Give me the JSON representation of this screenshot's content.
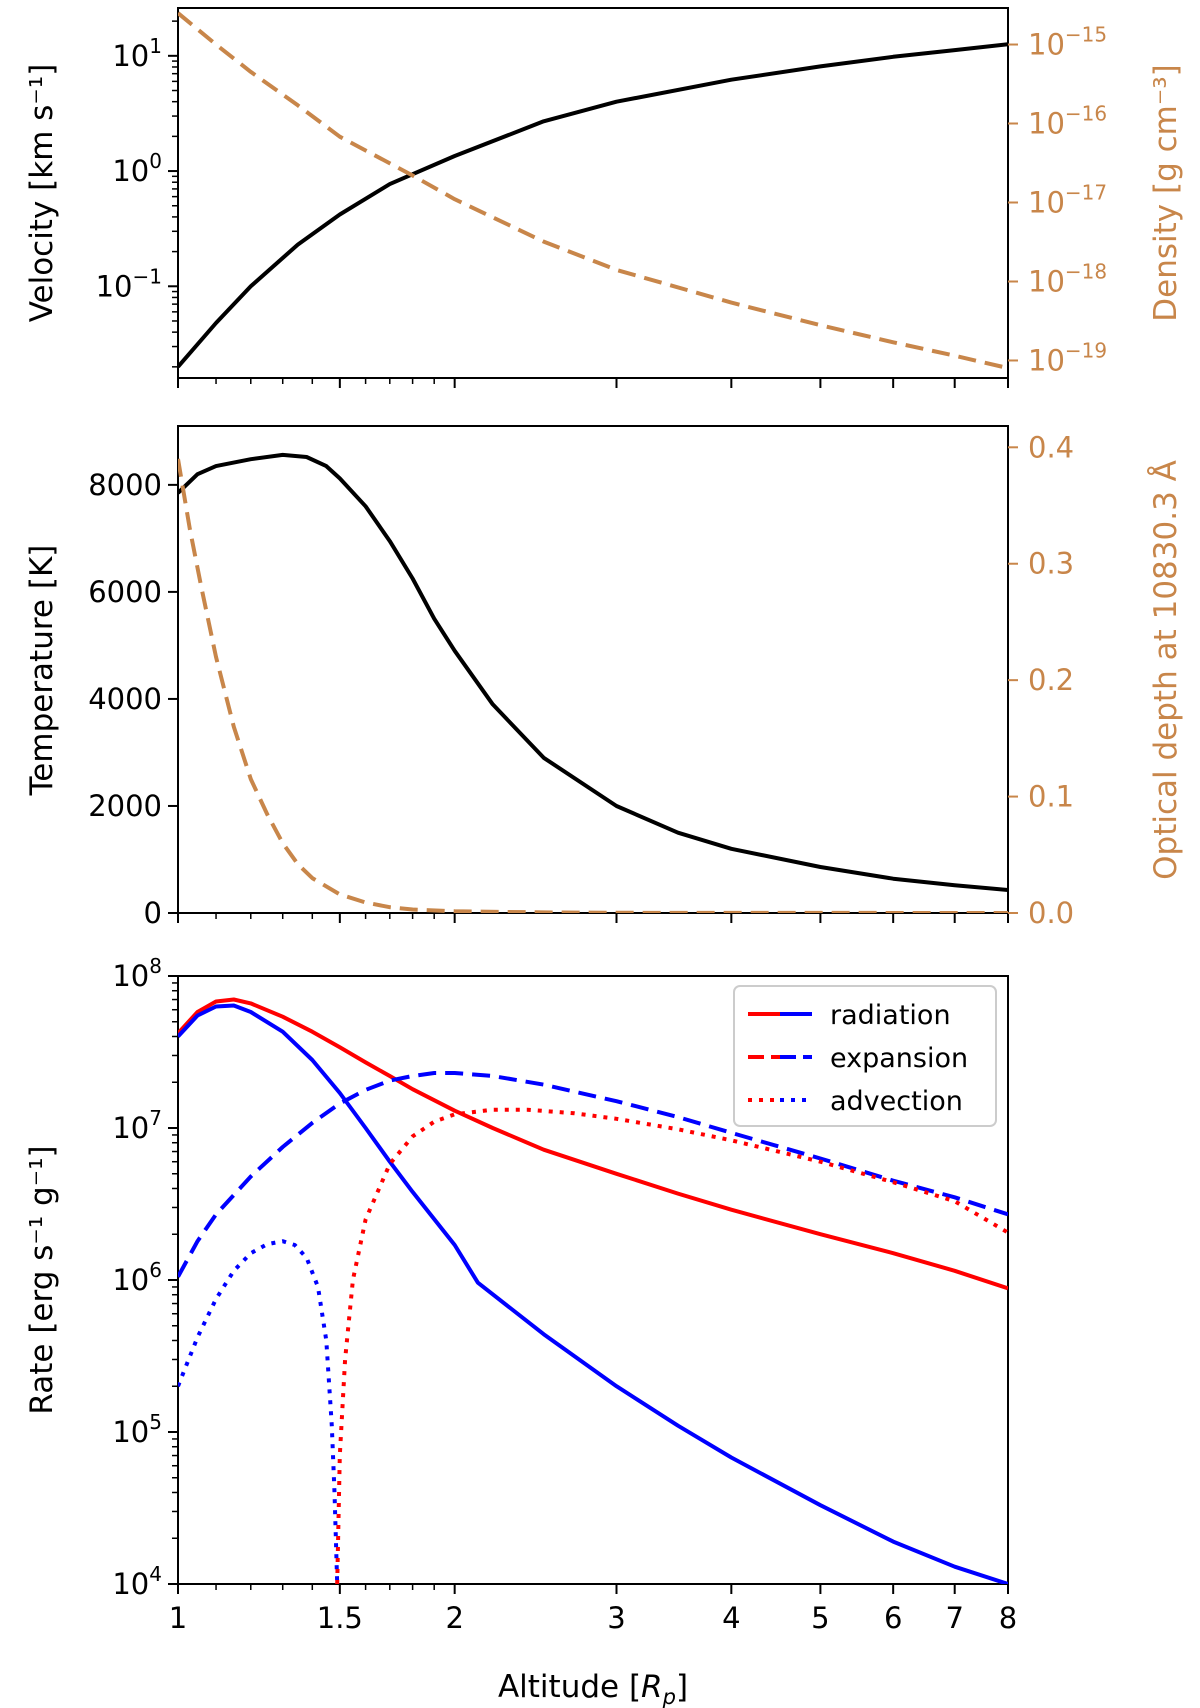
{
  "colors": {
    "black": "#000000",
    "orange": "#c8864a",
    "red": "#ff0000",
    "blue": "#0000ff"
  },
  "chart_data": [
    {
      "type": "line",
      "x_scale": "log",
      "xlim": [
        1,
        8
      ],
      "left_axis": {
        "label": "Velocity [km s⁻¹]",
        "scale": "log",
        "ylim": [
          0.016,
          26
        ],
        "ticks": [
          {
            "value": 10,
            "base": "10",
            "exp": "1"
          },
          {
            "value": 1,
            "base": "10",
            "exp": "0"
          },
          {
            "value": 0.1,
            "base": "10",
            "exp": "−1"
          }
        ]
      },
      "right_axis": {
        "label": "Density [g cm⁻³]",
        "scale": "log",
        "ylim": [
          6e-20,
          2.9e-15
        ],
        "ticks": [
          {
            "value": 1e-15,
            "base": "10",
            "exp": "−15"
          },
          {
            "value": 1e-16,
            "base": "10",
            "exp": "−16"
          },
          {
            "value": 1e-17,
            "base": "10",
            "exp": "−17"
          },
          {
            "value": 1e-18,
            "base": "10",
            "exp": "−18"
          },
          {
            "value": 1e-19,
            "base": "10",
            "exp": "−19"
          }
        ]
      },
      "series": [
        {
          "name": "velocity",
          "axis": "left",
          "style": "solid",
          "color": "#000000",
          "x": [
            1,
            1.1,
            1.2,
            1.35,
            1.5,
            1.7,
            2.0,
            2.5,
            3,
            4,
            5,
            6,
            7,
            8
          ],
          "y": [
            0.02,
            0.048,
            0.1,
            0.23,
            0.42,
            0.77,
            1.35,
            2.7,
            4.0,
            6.2,
            8.1,
            9.8,
            11.2,
            12.6
          ]
        },
        {
          "name": "density",
          "axis": "right",
          "style": "dashed",
          "color": "#c8864a",
          "x": [
            1,
            1.1,
            1.2,
            1.35,
            1.5,
            1.8,
            2.0,
            2.5,
            3,
            4,
            5,
            6,
            7,
            8
          ],
          "y": [
            2.5e-15,
            1e-15,
            4.5e-16,
            1.7e-16,
            6.8e-17,
            2.2e-17,
            1.1e-17,
            3.2e-18,
            1.4e-18,
            5.4e-19,
            2.8e-19,
            1.7e-19,
            1.15e-19,
            8e-20
          ]
        }
      ]
    },
    {
      "type": "line",
      "x_scale": "log",
      "xlim": [
        1,
        8
      ],
      "left_axis": {
        "label": "Temperature [K]",
        "scale": "linear",
        "ylim": [
          0,
          9100
        ],
        "ticks": [
          {
            "value": 0,
            "text": "0"
          },
          {
            "value": 2000,
            "text": "2000"
          },
          {
            "value": 4000,
            "text": "4000"
          },
          {
            "value": 6000,
            "text": "6000"
          },
          {
            "value": 8000,
            "text": "8000"
          }
        ]
      },
      "right_axis": {
        "label": "Optical depth at 10830.3 Å",
        "scale": "linear",
        "ylim": [
          0,
          0.4183
        ],
        "ticks": [
          {
            "value": 0.0,
            "text": "0.0"
          },
          {
            "value": 0.1,
            "text": "0.1"
          },
          {
            "value": 0.2,
            "text": "0.2"
          },
          {
            "value": 0.3,
            "text": "0.3"
          },
          {
            "value": 0.4,
            "text": "0.4"
          }
        ]
      },
      "series": [
        {
          "name": "temperature",
          "axis": "left",
          "style": "solid",
          "color": "#000000",
          "x": [
            1,
            1.05,
            1.1,
            1.2,
            1.3,
            1.38,
            1.45,
            1.5,
            1.6,
            1.7,
            1.8,
            1.9,
            2.0,
            2.2,
            2.5,
            3,
            3.5,
            4,
            5,
            6,
            7,
            8
          ],
          "y": [
            7850,
            8200,
            8350,
            8480,
            8560,
            8520,
            8350,
            8120,
            7600,
            6950,
            6250,
            5500,
            4900,
            3900,
            2900,
            2000,
            1500,
            1200,
            860,
            640,
            520,
            430
          ]
        },
        {
          "name": "optical depth",
          "axis": "right",
          "style": "dashed",
          "color": "#c8864a",
          "x": [
            1,
            1.03,
            1.06,
            1.1,
            1.15,
            1.2,
            1.25,
            1.3,
            1.35,
            1.4,
            1.5,
            1.6,
            1.7,
            1.8,
            2.0,
            2.5,
            3,
            8
          ],
          "y": [
            0.39,
            0.33,
            0.28,
            0.22,
            0.16,
            0.115,
            0.085,
            0.06,
            0.042,
            0.03,
            0.016,
            0.009,
            0.005,
            0.003,
            0.0015,
            0.0005,
            0.0002,
            0.0
          ]
        }
      ]
    },
    {
      "type": "line",
      "x_scale": "log",
      "xlim": [
        1,
        8
      ],
      "xlabel": {
        "prefix": "Altitude [",
        "var": "R",
        "sub": "p",
        "suffix": "]"
      },
      "x_ticks": [
        {
          "value": 1,
          "text": "1"
        },
        {
          "value": 1.5,
          "text": "1.5"
        },
        {
          "value": 2,
          "text": "2"
        },
        {
          "value": 3,
          "text": "3"
        },
        {
          "value": 4,
          "text": "4"
        },
        {
          "value": 5,
          "text": "5"
        },
        {
          "value": 6,
          "text": "6"
        },
        {
          "value": 7,
          "text": "7"
        },
        {
          "value": 8,
          "text": "8"
        }
      ],
      "left_axis": {
        "label": "Rate [erg s⁻¹ g⁻¹]",
        "scale": "log",
        "ylim": [
          10000,
          100000000
        ],
        "ticks": [
          {
            "value": 100000000,
            "base": "10",
            "exp": "8"
          },
          {
            "value": 10000000,
            "base": "10",
            "exp": "7"
          },
          {
            "value": 1000000,
            "base": "10",
            "exp": "6"
          },
          {
            "value": 100000,
            "base": "10",
            "exp": "5"
          },
          {
            "value": 10000,
            "base": "10",
            "exp": "4"
          }
        ]
      },
      "legend": {
        "placement": "top-right",
        "entries": [
          {
            "label": "radiation",
            "style": "solid"
          },
          {
            "label": "expansion",
            "style": "dashed"
          },
          {
            "label": "advection",
            "style": "dotted"
          }
        ]
      },
      "series": [
        {
          "name": "radiation heating",
          "style": "solid",
          "color": "#ff0000",
          "x": [
            1,
            1.05,
            1.1,
            1.15,
            1.2,
            1.3,
            1.4,
            1.5,
            1.6,
            1.7,
            1.8,
            2.0,
            2.2,
            2.5,
            3,
            3.5,
            4,
            5,
            6,
            7,
            8
          ],
          "y": [
            42000000,
            58000000,
            68000000,
            70000000,
            66000000,
            54000000,
            43000000,
            34000000,
            27000000,
            22000000,
            18000000,
            13000000,
            10000000,
            7200000,
            5000000,
            3700000,
            2900000,
            2000000,
            1500000,
            1150000,
            880000
          ]
        },
        {
          "name": "radiation cooling",
          "style": "solid",
          "color": "#0000ff",
          "x": [
            1,
            1.05,
            1.1,
            1.15,
            1.2,
            1.3,
            1.4,
            1.5,
            1.6,
            1.7,
            1.8,
            2.0,
            2.12,
            2.5,
            3,
            3.5,
            4,
            5,
            6,
            7,
            8
          ],
          "y": [
            40000000,
            55000000,
            63000000,
            64000000,
            58000000,
            43000000,
            28000000,
            17000000,
            10000000,
            6000000,
            3800000,
            1700000,
            960000,
            440000,
            200000,
            110000,
            68000,
            33000,
            19000,
            13000,
            10000
          ]
        },
        {
          "name": "expansion cooling",
          "style": "dashed",
          "color": "#0000ff",
          "x": [
            1,
            1.05,
            1.1,
            1.2,
            1.3,
            1.4,
            1.5,
            1.6,
            1.7,
            1.8,
            1.9,
            2.0,
            2.2,
            2.5,
            3,
            3.5,
            4,
            5,
            6,
            7,
            8
          ],
          "y": [
            1050000,
            1800000,
            2700000,
            4800000,
            7500000,
            10800000,
            14500000,
            17800000,
            20500000,
            22000000,
            23000000,
            23000000,
            22000000,
            19300000,
            15000000,
            11800000,
            9300000,
            6300000,
            4500000,
            3500000,
            2700000
          ]
        },
        {
          "name": "advection (negative)",
          "style": "dotted",
          "color": "#0000ff",
          "x": [
            1,
            1.05,
            1.1,
            1.15,
            1.2,
            1.25,
            1.3,
            1.34,
            1.38,
            1.42,
            1.45,
            1.47,
            1.48,
            1.49
          ],
          "y": [
            200000,
            420000,
            750000,
            1150000,
            1500000,
            1720000,
            1800000,
            1700000,
            1400000,
            900000,
            400000,
            110000,
            40000,
            10000
          ]
        },
        {
          "name": "advection (positive)",
          "style": "dotted",
          "color": "#ff0000",
          "x": [
            1.49,
            1.5,
            1.52,
            1.55,
            1.6,
            1.7,
            1.8,
            1.9,
            2.0,
            2.2,
            2.4,
            2.7,
            3,
            3.5,
            4,
            5,
            6,
            7,
            8
          ],
          "y": [
            10000,
            70000,
            300000,
            1000000,
            2500000,
            5800000,
            8800000,
            11000000,
            12300000,
            13200000,
            13200000,
            12500000,
            11500000,
            9800000,
            8300000,
            6000000,
            4400000,
            3300000,
            2050000
          ]
        }
      ]
    }
  ]
}
